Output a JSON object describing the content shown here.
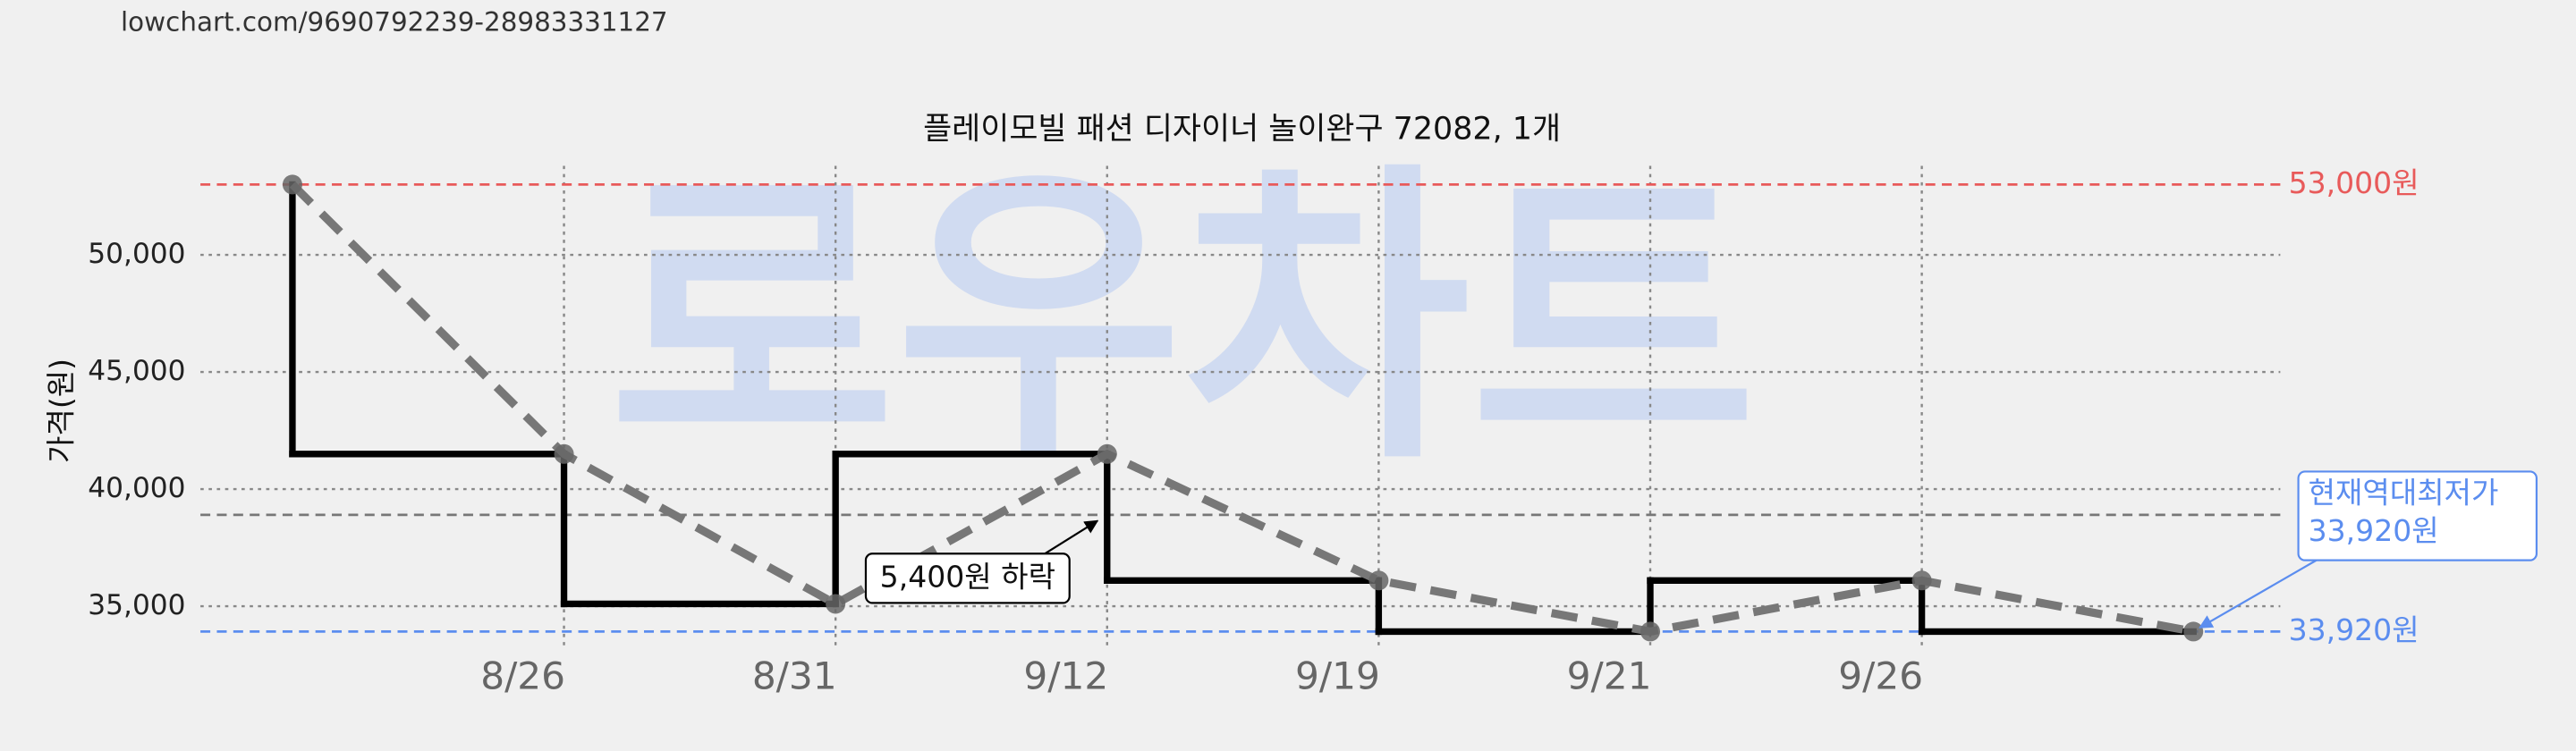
{
  "url": "lowchart.com/9690792239-28983331127",
  "watermark": "로우차트",
  "chart_data": {
    "type": "line",
    "title": "플레이모빌 패션 디자이너 놀이완구 72082, 1개",
    "y_label": "가격(원)",
    "categories": [
      null,
      "8/26",
      "8/31",
      "9/12",
      "9/19",
      "9/21",
      "9/26",
      null
    ],
    "values": [
      53000,
      41500,
      35100,
      41500,
      36100,
      33920,
      36100,
      33920
    ],
    "color": "#000000",
    "trend_color": "#777777",
    "ylim": [
      33200,
      53800
    ],
    "yticks": [
      {
        "value": 35000,
        "label": "35,000"
      },
      {
        "value": 40000,
        "label": "40,000"
      },
      {
        "value": 45000,
        "label": "45,000"
      },
      {
        "value": 50000,
        "label": "50,000"
      }
    ],
    "grid": true,
    "reference_lines": [
      {
        "value": 53000,
        "label": "53,000원",
        "color": "#e85a5a"
      },
      {
        "value": 33920,
        "label": "33,920원",
        "color": "#5b8def"
      },
      {
        "value": 38900,
        "color": "#777777"
      }
    ],
    "annotations": [
      {
        "text": "5,400원 하락"
      },
      {
        "lines": [
          "현재역대최저가",
          "33,920원"
        ],
        "color": "#5b8def"
      }
    ]
  }
}
